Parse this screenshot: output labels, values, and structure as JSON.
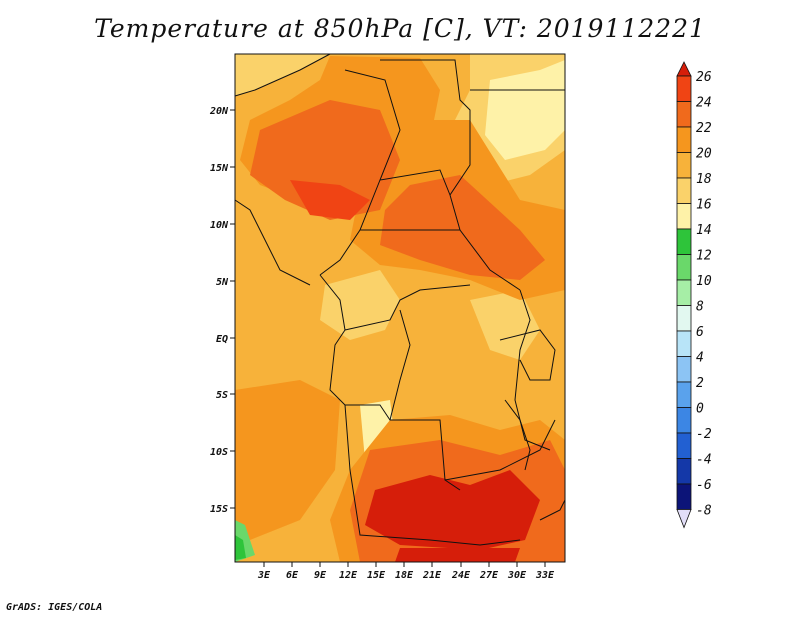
{
  "title": "Temperature at 850hPa [C], VT: 2019112221",
  "credit": "GrADS: IGES/COLA",
  "map": {
    "lat_ticks": [
      "20N",
      "15N",
      "10N",
      "5N",
      "EQ",
      "5S",
      "10S",
      "15S"
    ],
    "lon_ticks": [
      "3E",
      "6E",
      "9E",
      "12E",
      "15E",
      "18E",
      "21E",
      "24E",
      "27E",
      "30E",
      "33E"
    ]
  },
  "colorbar": {
    "labels": [
      "26",
      "24",
      "22",
      "20",
      "18",
      "16",
      "14",
      "12",
      "10",
      "8",
      "6",
      "4",
      "2",
      "0",
      "-2",
      "-4",
      "-6",
      "-8"
    ],
    "colors": [
      "#d61e0a",
      "#f04414",
      "#f06a1c",
      "#f5961e",
      "#f7b23a",
      "#fad26a",
      "#fef2a8",
      "#2ec43a",
      "#6ad86a",
      "#a6eea6",
      "#e2f8f0",
      "#b8e4f8",
      "#8cc4f4",
      "#5aa2ec",
      "#3c86e4",
      "#2260d2",
      "#1438a8",
      "#0c1478",
      "#e2def8"
    ]
  }
}
